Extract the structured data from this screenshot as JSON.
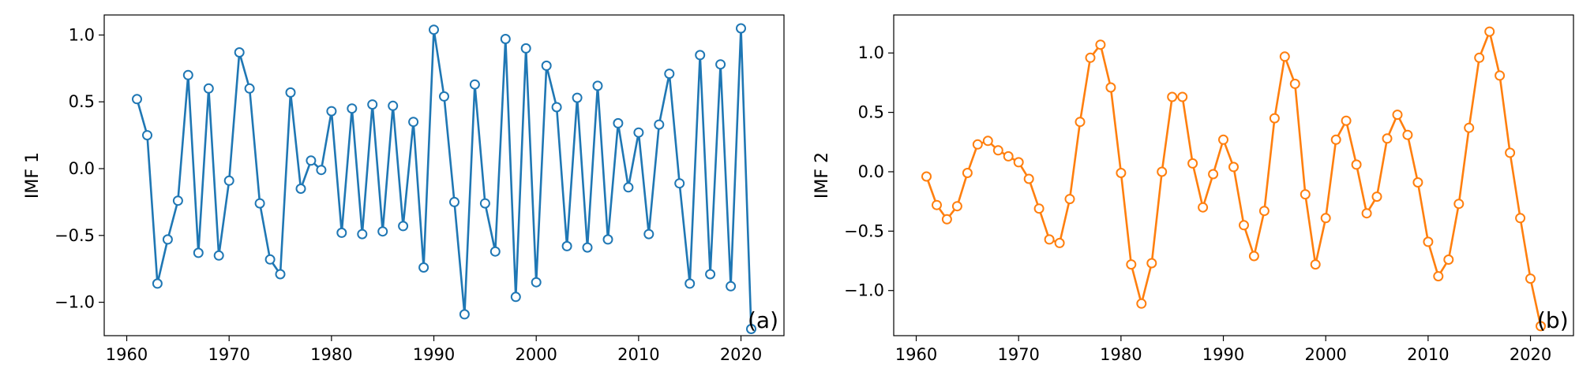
{
  "chart_data": [
    {
      "type": "line",
      "panel_label": "(a)",
      "xlabel": "",
      "ylabel": "IMF 1",
      "color": "#1f77b4",
      "marker": "open-circle",
      "xlim": [
        1957.8,
        2024.2
      ],
      "ylim": [
        -1.25,
        1.15
      ],
      "xticks": [
        1960,
        1970,
        1980,
        1990,
        2000,
        2010,
        2020
      ],
      "xtick_labels": [
        "1960",
        "1970",
        "1980",
        "1990",
        "2000",
        "2010",
        "2020"
      ],
      "yticks": [
        1.0,
        0.5,
        0.0,
        -0.5,
        -1.0
      ],
      "ytick_labels": [
        "1.0",
        "0.5",
        "0.0",
        "−0.5",
        "−1.0"
      ],
      "series": [
        {
          "name": "IMF 1",
          "x": [
            1961,
            1962,
            1963,
            1964,
            1965,
            1966,
            1967,
            1968,
            1969,
            1970,
            1971,
            1972,
            1973,
            1974,
            1975,
            1976,
            1977,
            1978,
            1979,
            1980,
            1981,
            1982,
            1983,
            1984,
            1985,
            1986,
            1987,
            1988,
            1989,
            1990,
            1991,
            1992,
            1993,
            1994,
            1995,
            1996,
            1997,
            1998,
            1999,
            2000,
            2001,
            2002,
            2003,
            2004,
            2005,
            2006,
            2007,
            2008,
            2009,
            2010,
            2011,
            2012,
            2013,
            2014,
            2015,
            2016,
            2017,
            2018,
            2019,
            2020,
            2021
          ],
          "values": [
            0.52,
            0.25,
            -0.86,
            -0.53,
            -0.24,
            0.7,
            -0.63,
            0.6,
            -0.65,
            -0.09,
            0.87,
            0.6,
            -0.26,
            -0.68,
            -0.79,
            0.57,
            -0.15,
            0.06,
            -0.01,
            0.43,
            -0.48,
            0.45,
            -0.49,
            0.48,
            -0.47,
            0.47,
            -0.43,
            0.35,
            -0.74,
            1.04,
            0.54,
            -0.25,
            -1.09,
            0.63,
            -0.26,
            -0.62,
            0.97,
            -0.96,
            0.9,
            -0.85,
            0.77,
            0.46,
            -0.58,
            0.53,
            -0.59,
            0.62,
            -0.53,
            0.34,
            -0.14,
            0.27,
            -0.49,
            0.33,
            0.71,
            -0.11,
            -0.86,
            0.85,
            -0.79,
            0.78,
            -0.88,
            1.05,
            -1.2
          ]
        }
      ]
    },
    {
      "type": "line",
      "panel_label": "(b)",
      "xlabel": "",
      "ylabel": "IMF 2",
      "color": "#ff7f0e",
      "marker": "open-circle",
      "xlim": [
        1957.8,
        2024.2
      ],
      "ylim": [
        -1.38,
        1.32
      ],
      "xticks": [
        1960,
        1970,
        1980,
        1990,
        2000,
        2010,
        2020
      ],
      "xtick_labels": [
        "1960",
        "1970",
        "1980",
        "1990",
        "2000",
        "2010",
        "2020"
      ],
      "yticks": [
        1.0,
        0.5,
        0.0,
        -0.5,
        -1.0
      ],
      "ytick_labels": [
        "1.0",
        "0.5",
        "0.0",
        "−0.5",
        "−1.0"
      ],
      "series": [
        {
          "name": "IMF 2",
          "x": [
            1961,
            1962,
            1963,
            1964,
            1965,
            1966,
            1967,
            1968,
            1969,
            1970,
            1971,
            1972,
            1973,
            1974,
            1975,
            1976,
            1977,
            1978,
            1979,
            1980,
            1981,
            1982,
            1983,
            1984,
            1985,
            1986,
            1987,
            1988,
            1989,
            1990,
            1991,
            1992,
            1993,
            1994,
            1995,
            1996,
            1997,
            1998,
            1999,
            2000,
            2001,
            2002,
            2003,
            2004,
            2005,
            2006,
            2007,
            2008,
            2009,
            2010,
            2011,
            2012,
            2013,
            2014,
            2015,
            2016,
            2017,
            2018,
            2019,
            2020,
            2021
          ],
          "values": [
            -0.04,
            -0.28,
            -0.4,
            -0.29,
            -0.01,
            0.23,
            0.26,
            0.18,
            0.13,
            0.08,
            -0.06,
            -0.31,
            -0.57,
            -0.6,
            -0.23,
            0.42,
            0.96,
            1.07,
            0.71,
            -0.01,
            -0.78,
            -1.11,
            -0.77,
            0.0,
            0.63,
            0.63,
            0.07,
            -0.3,
            -0.02,
            0.27,
            0.04,
            -0.45,
            -0.71,
            -0.33,
            0.45,
            0.97,
            0.74,
            -0.19,
            -0.78,
            -0.39,
            0.27,
            0.43,
            0.06,
            -0.35,
            -0.21,
            0.28,
            0.48,
            0.31,
            -0.09,
            -0.59,
            -0.88,
            -0.74,
            -0.27,
            0.37,
            0.96,
            1.18,
            0.81,
            0.16,
            -0.39,
            -0.9,
            -1.3
          ]
        }
      ]
    }
  ]
}
